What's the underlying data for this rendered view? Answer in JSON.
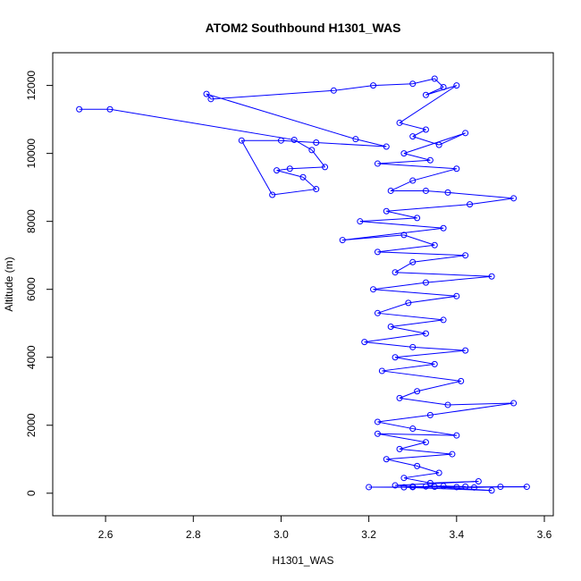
{
  "chart_data": {
    "type": "scatter",
    "title": "ATOM2 Southbound H1301_WAS",
    "xlabel": "H1301_WAS",
    "ylabel": "Altitude (m)",
    "xlim": [
      2.5,
      3.6
    ],
    "ylim": [
      -400,
      12700
    ],
    "xticks": [
      "2.6",
      "2.8",
      "3.0",
      "3.2",
      "3.4",
      "3.6"
    ],
    "yticks": [
      "0",
      "2000",
      "4000",
      "6000",
      "8000",
      "10000",
      "12000"
    ],
    "grid": false,
    "legend": "none",
    "series_color": "#0000ff",
    "series": [
      {
        "style": "points-and-lines",
        "points": [
          [
            2.54,
            11300
          ],
          [
            2.61,
            11300
          ],
          [
            3.03,
            10400
          ],
          [
            3.07,
            10100
          ],
          [
            3.1,
            9600
          ],
          [
            3.02,
            9550
          ],
          [
            2.99,
            9500
          ],
          [
            3.05,
            9300
          ],
          [
            3.08,
            8950
          ],
          [
            2.98,
            8780
          ],
          [
            2.91,
            10380
          ],
          [
            3.0,
            10380
          ],
          [
            3.08,
            10320
          ],
          [
            3.24,
            10200
          ],
          [
            3.17,
            10420
          ],
          [
            2.83,
            11750
          ],
          [
            2.84,
            11600
          ],
          [
            3.12,
            11850
          ],
          [
            3.21,
            12000
          ],
          [
            3.3,
            12050
          ],
          [
            3.35,
            12200
          ],
          [
            3.37,
            11950
          ],
          [
            3.33,
            11720
          ],
          [
            3.4,
            12000
          ],
          [
            3.27,
            10900
          ],
          [
            3.33,
            10700
          ],
          [
            3.3,
            10500
          ],
          [
            3.36,
            10250
          ],
          [
            3.42,
            10600
          ],
          [
            3.28,
            10000
          ],
          [
            3.34,
            9800
          ],
          [
            3.22,
            9700
          ],
          [
            3.4,
            9550
          ],
          [
            3.3,
            9200
          ],
          [
            3.25,
            8900
          ],
          [
            3.33,
            8900
          ],
          [
            3.38,
            8850
          ],
          [
            3.53,
            8680
          ],
          [
            3.43,
            8500
          ],
          [
            3.24,
            8300
          ],
          [
            3.31,
            8100
          ],
          [
            3.18,
            8000
          ],
          [
            3.37,
            7800
          ],
          [
            3.14,
            7450
          ],
          [
            3.28,
            7600
          ],
          [
            3.35,
            7300
          ],
          [
            3.22,
            7100
          ],
          [
            3.42,
            7000
          ],
          [
            3.3,
            6800
          ],
          [
            3.26,
            6500
          ],
          [
            3.48,
            6380
          ],
          [
            3.33,
            6200
          ],
          [
            3.21,
            6000
          ],
          [
            3.4,
            5800
          ],
          [
            3.29,
            5600
          ],
          [
            3.22,
            5300
          ],
          [
            3.37,
            5100
          ],
          [
            3.25,
            4900
          ],
          [
            3.33,
            4700
          ],
          [
            3.19,
            4450
          ],
          [
            3.3,
            4300
          ],
          [
            3.42,
            4200
          ],
          [
            3.26,
            4000
          ],
          [
            3.35,
            3800
          ],
          [
            3.23,
            3600
          ],
          [
            3.41,
            3300
          ],
          [
            3.31,
            3000
          ],
          [
            3.27,
            2800
          ],
          [
            3.38,
            2600
          ],
          [
            3.53,
            2650
          ],
          [
            3.34,
            2300
          ],
          [
            3.22,
            2100
          ],
          [
            3.3,
            1900
          ],
          [
            3.4,
            1700
          ],
          [
            3.22,
            1750
          ],
          [
            3.33,
            1500
          ],
          [
            3.27,
            1300
          ],
          [
            3.39,
            1150
          ],
          [
            3.24,
            1000
          ],
          [
            3.31,
            800
          ],
          [
            3.36,
            600
          ],
          [
            3.28,
            450
          ],
          [
            3.34,
            300
          ],
          [
            3.45,
            350
          ],
          [
            3.26,
            230
          ],
          [
            3.3,
            200
          ],
          [
            3.35,
            190
          ],
          [
            3.4,
            180
          ],
          [
            3.44,
            170
          ],
          [
            3.5,
            190
          ],
          [
            3.56,
            190
          ],
          [
            3.2,
            180
          ],
          [
            3.28,
            175
          ],
          [
            3.48,
            80
          ],
          [
            3.33,
            200
          ],
          [
            3.37,
            210
          ],
          [
            3.42,
            195
          ],
          [
            3.3,
            180
          ]
        ]
      }
    ]
  }
}
